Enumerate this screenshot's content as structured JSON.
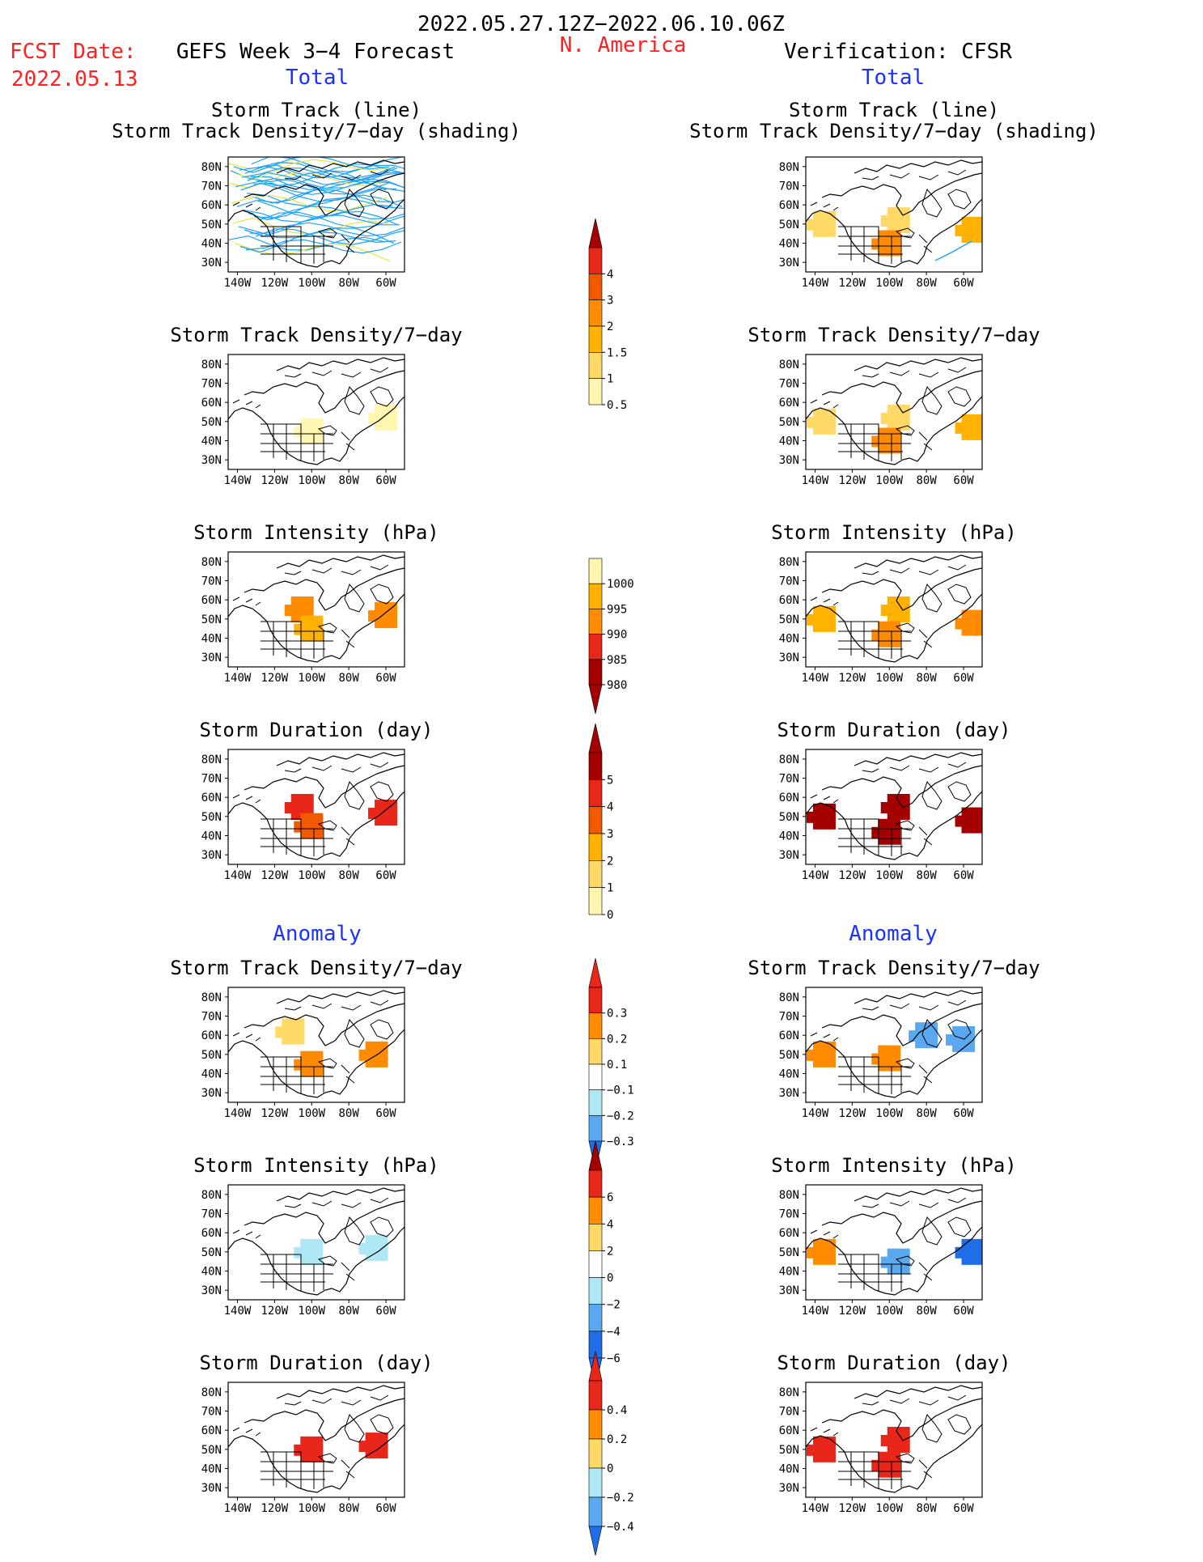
{
  "header": {
    "period": "2022.05.27.12Z−2022.06.10.06Z",
    "region": "N. America",
    "fcst_label": "FCST Date:",
    "fcst_date": "2022.05.13",
    "forecast_title": "GEFS Week 3−4 Forecast",
    "verification_title": "Verification: CFSR"
  },
  "sections": {
    "total": "Total",
    "anomaly": "Anomaly"
  },
  "axes": {
    "lat_ticks": [
      "80N",
      "70N",
      "60N",
      "50N",
      "40N",
      "30N"
    ],
    "lon_ticks": [
      "140W",
      "120W",
      "100W",
      "80W",
      "60W"
    ]
  },
  "panel_titles": {
    "track_line": "Storm Track (line)",
    "track_shading": "Storm Track Density/7−day (shading)",
    "density": "Storm Track Density/7−day",
    "intensity": "Storm Intensity (hPa)",
    "duration": "Storm Duration (day)"
  },
  "colors": {
    "yellow_light": "#fff6b0",
    "yellow": "#ffd966",
    "orange_light": "#ffb300",
    "orange": "#ff8c00",
    "red_orange": "#f25a00",
    "red": "#e8261a",
    "dark_red": "#a50000",
    "blue_light": "#aee8f5",
    "blue_mid": "#5aa8f0",
    "blue": "#1f6ee8",
    "track_blue": "#1aa0ff",
    "track_yellow": "#e6e640"
  },
  "colorbars": {
    "density": [
      "4",
      "3",
      "2",
      "1.5",
      "1",
      "0.5"
    ],
    "intensity": [
      "1000",
      "995",
      "990",
      "985",
      "980"
    ],
    "duration": [
      "5",
      "4",
      "3",
      "2",
      "1",
      "0"
    ],
    "density_anom": [
      "0.3",
      "0.2",
      "0.1",
      "−0.1",
      "−0.2",
      "−0.3"
    ],
    "intensity_anom": [
      "6",
      "4",
      "2",
      "0",
      "−2",
      "−4",
      "−6"
    ],
    "duration_anom": [
      "0.4",
      "0.2",
      "0",
      "−0.2",
      "−0.4"
    ]
  },
  "chart_data": [
    {
      "type": "heatmap",
      "title": "Storm Track (line) / Storm Track Density/7−day (shading)",
      "source": "GEFS Week 3−4 Forecast",
      "cells": []
    },
    {
      "type": "heatmap",
      "title": "Storm Track (line) / Storm Track Density/7−day (shading)",
      "source": "Verification: CFSR",
      "cells": [
        [
          -135,
          50,
          1
        ],
        [
          -95,
          52,
          1
        ],
        [
          -100,
          40,
          2
        ],
        [
          -55,
          47,
          1.5
        ]
      ]
    },
    {
      "type": "heatmap",
      "title": "Storm Track Density/7−day",
      "source": "GEFS Week 3−4 Forecast",
      "cells": [
        [
          -60,
          52,
          0.5
        ],
        [
          -100,
          45,
          0.5
        ]
      ]
    },
    {
      "type": "heatmap",
      "title": "Storm Track Density/7−day",
      "source": "Verification: CFSR",
      "cells": [
        [
          -135,
          50,
          1
        ],
        [
          -95,
          52,
          1
        ],
        [
          -100,
          40,
          2
        ],
        [
          -55,
          47,
          1.5
        ]
      ]
    },
    {
      "type": "heatmap",
      "title": "Storm Intensity (hPa)",
      "source": "GEFS Week 3−4 Forecast",
      "cells": [
        [
          -60,
          52,
          990
        ],
        [
          -105,
          55,
          990
        ],
        [
          -100,
          45,
          995
        ]
      ]
    },
    {
      "type": "heatmap",
      "title": "Storm Intensity (hPa)",
      "source": "Verification: CFSR",
      "cells": [
        [
          -135,
          50,
          995
        ],
        [
          -95,
          55,
          995
        ],
        [
          -100,
          42,
          990
        ],
        [
          -55,
          48,
          990
        ]
      ]
    },
    {
      "type": "heatmap",
      "title": "Storm Duration (day)",
      "source": "GEFS Week 3−4 Forecast",
      "cells": [
        [
          -60,
          52,
          4
        ],
        [
          -105,
          55,
          4
        ],
        [
          -100,
          45,
          3
        ]
      ]
    },
    {
      "type": "heatmap",
      "title": "Storm Duration (day)",
      "source": "Verification: CFSR",
      "cells": [
        [
          -135,
          50,
          5
        ],
        [
          -95,
          55,
          5
        ],
        [
          -100,
          42,
          5
        ],
        [
          -55,
          48,
          5
        ]
      ]
    },
    {
      "type": "heatmap",
      "title": "Storm Track Density/7−day (Anomaly)",
      "source": "GEFS Week 3−4 Forecast",
      "cells": [
        [
          -100,
          45,
          0.3
        ],
        [
          -65,
          50,
          0.3
        ],
        [
          -110,
          62,
          0.1
        ]
      ]
    },
    {
      "type": "heatmap",
      "title": "Storm Track Density/7−day (Anomaly)",
      "source": "Verification: CFSR",
      "cells": [
        [
          -135,
          50,
          0.3
        ],
        [
          -100,
          48,
          0.3
        ],
        [
          -80,
          60,
          -0.3
        ],
        [
          -60,
          58,
          -0.3
        ]
      ]
    },
    {
      "type": "heatmap",
      "title": "Storm Intensity (hPa) (Anomaly)",
      "source": "GEFS Week 3−4 Forecast",
      "cells": [
        [
          -65,
          52,
          -2
        ],
        [
          -100,
          50,
          -2
        ]
      ]
    },
    {
      "type": "heatmap",
      "title": "Storm Intensity (hPa) (Anomaly)",
      "source": "Verification: CFSR",
      "cells": [
        [
          -135,
          50,
          4
        ],
        [
          -95,
          45,
          -4
        ],
        [
          -55,
          50,
          -6
        ]
      ]
    },
    {
      "type": "heatmap",
      "title": "Storm Duration (day) (Anomaly)",
      "source": "GEFS Week 3−4 Forecast",
      "cells": [
        [
          -65,
          52,
          0.4
        ],
        [
          -100,
          50,
          0.4
        ]
      ]
    },
    {
      "type": "heatmap",
      "title": "Storm Duration (day) (Anomaly)",
      "source": "Verification: CFSR",
      "cells": [
        [
          -135,
          50,
          0.4
        ],
        [
          -95,
          55,
          0.4
        ],
        [
          -100,
          42,
          0.4
        ]
      ]
    }
  ]
}
